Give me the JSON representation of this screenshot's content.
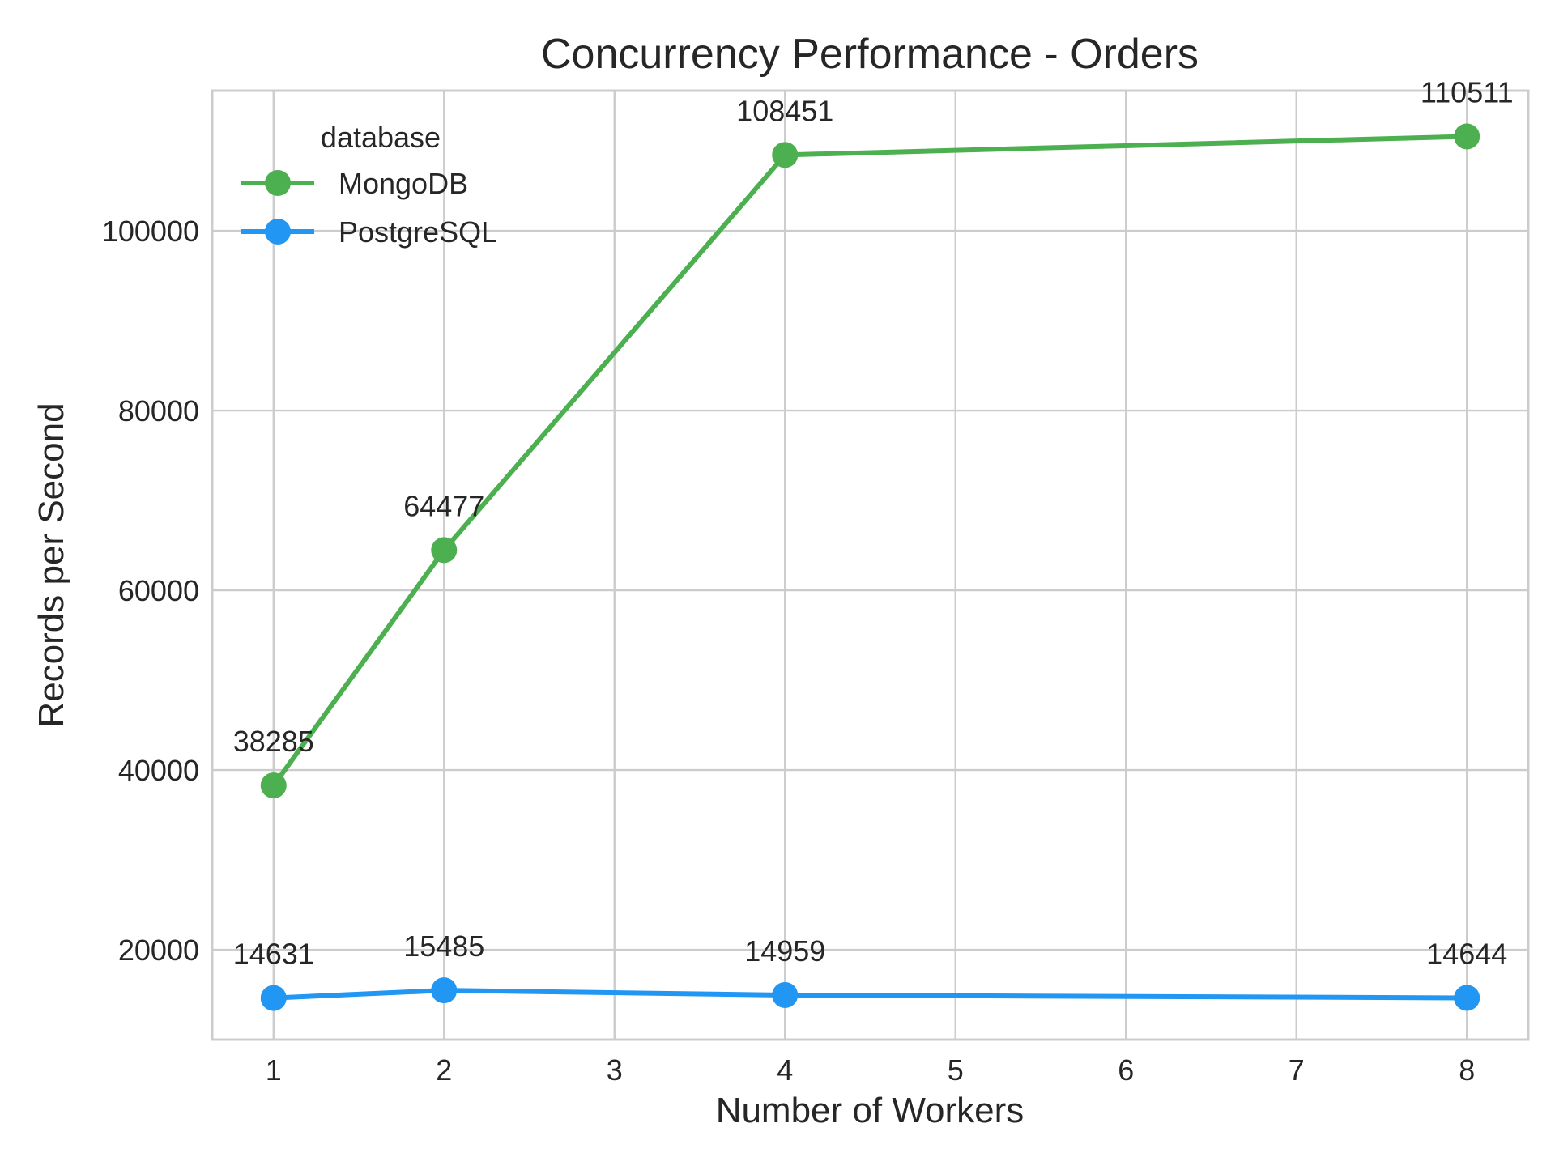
{
  "chart_data": {
    "type": "line",
    "title": "Concurrency Performance - Orders",
    "xlabel": "Number of Workers",
    "ylabel": "Records per Second",
    "x": [
      1,
      2,
      4,
      8
    ],
    "xticks": [
      1,
      2,
      3,
      4,
      5,
      6,
      7,
      8
    ],
    "yticks": [
      20000,
      40000,
      60000,
      80000,
      100000
    ],
    "xlim": [
      0.64,
      8.36
    ],
    "ylim": [
      10000,
      115600
    ],
    "grid": true,
    "legend": {
      "title": "database",
      "position": "top-left"
    },
    "series": [
      {
        "name": "MongoDB",
        "color": "#4caf50",
        "values": [
          38285,
          64477,
          108451,
          110511
        ],
        "labels": [
          "38285",
          "64477",
          "108451",
          "110511"
        ]
      },
      {
        "name": "PostgreSQL",
        "color": "#2196f3",
        "values": [
          14631,
          15485,
          14959,
          14644
        ],
        "labels": [
          "14631",
          "15485",
          "14959",
          "14644"
        ]
      }
    ]
  }
}
